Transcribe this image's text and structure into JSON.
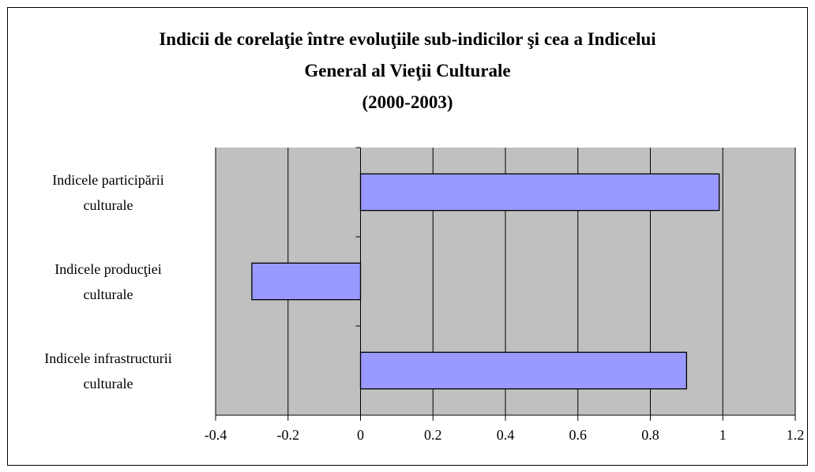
{
  "chart_data": {
    "type": "barh",
    "title": "Indicii de corelaţie între evoluţiile sub-indicilor şi cea a Indicelui\nGeneral al Vieţii Culturale\n(2000-2003)",
    "categories": [
      "Indicele participării\nculturale",
      "Indicele producţiei\nculturale",
      "Indicele infrastructurii\nculturale"
    ],
    "values": [
      0.99,
      -0.3,
      0.9
    ],
    "color": "#9999ff",
    "xlim": [
      -0.4,
      1.2
    ],
    "xticks": [
      -0.4,
      -0.2,
      0,
      0.2,
      0.4,
      0.6,
      0.8,
      1,
      1.2
    ],
    "grid": true
  }
}
